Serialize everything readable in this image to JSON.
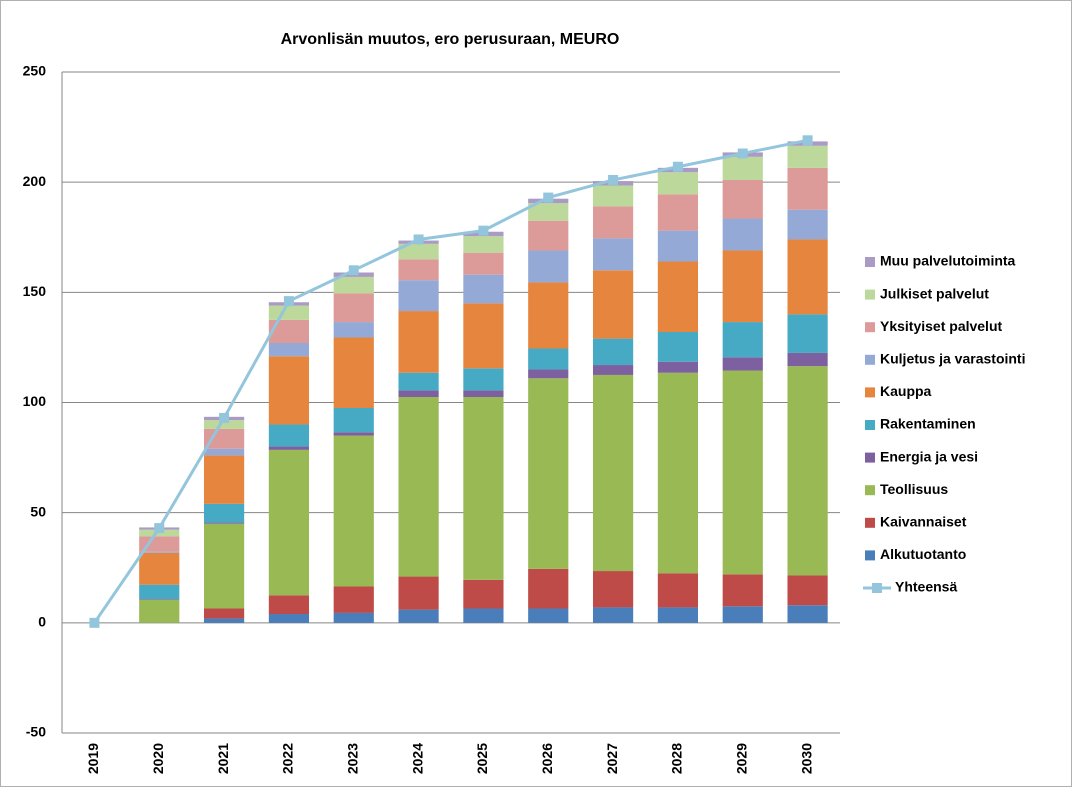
{
  "chart_data": {
    "type": "bar",
    "stacked": true,
    "title": "Arvonlisän muutos, ero perusuraan, MEURO",
    "categories": [
      "2019",
      "2020",
      "2021",
      "2022",
      "2023",
      "2024",
      "2025",
      "2026",
      "2027",
      "2028",
      "2029",
      "2030"
    ],
    "ylim": [
      -50,
      250
    ],
    "yticks": [
      -50,
      0,
      50,
      100,
      150,
      200,
      250
    ],
    "grid": true,
    "legend": "right",
    "series": [
      {
        "name": "Alkutuotanto",
        "color": "#4a7ebb",
        "values": [
          0,
          0,
          2,
          4,
          4.5,
          6,
          6.5,
          6.5,
          7,
          7,
          7.5,
          8
        ]
      },
      {
        "name": "Kaivannaiset",
        "color": "#be4b48",
        "values": [
          0,
          0,
          4.5,
          8.5,
          12,
          15,
          13,
          18,
          16.5,
          15.5,
          14.5,
          13.5
        ]
      },
      {
        "name": "Teollisuus",
        "color": "#98b954",
        "values": [
          0,
          10.5,
          38.5,
          66,
          68.5,
          81.5,
          83,
          86.5,
          89,
          91,
          92.5,
          95
        ]
      },
      {
        "name": "Energia ja vesi",
        "color": "#7d60a0",
        "values": [
          0,
          0.3,
          0.5,
          1.5,
          1.5,
          3,
          3,
          4,
          4.5,
          5,
          6,
          6
        ]
      },
      {
        "name": "Rakentaminen",
        "color": "#46aac4",
        "values": [
          0,
          6.5,
          8.5,
          10,
          11,
          8,
          10,
          9.5,
          12,
          13.5,
          16,
          17.5
        ]
      },
      {
        "name": "Kauppa",
        "color": "#e5853e",
        "values": [
          0,
          14.5,
          22,
          31,
          32,
          28,
          29.5,
          30,
          31,
          32,
          32.5,
          34
        ]
      },
      {
        "name": "Kuljetus ja varastointi",
        "color": "#94a9d6",
        "values": [
          0,
          0.5,
          3,
          6,
          7,
          14,
          13,
          14.5,
          14.5,
          14,
          14.5,
          13.5
        ]
      },
      {
        "name": "Yksityiset palvelut",
        "color": "#dc9a99",
        "values": [
          0,
          7,
          9,
          10.5,
          13,
          9.5,
          10,
          13.5,
          14.5,
          16.5,
          17.5,
          19
        ]
      },
      {
        "name": "Julkiset palvelut",
        "color": "#bcd89a",
        "values": [
          0,
          3,
          4,
          6.5,
          7.5,
          7,
          7.5,
          8,
          9.5,
          10,
          10.5,
          10
        ]
      },
      {
        "name": "Muu palvelutoiminta",
        "color": "#a99bc4",
        "values": [
          0,
          1,
          1.5,
          1.5,
          2,
          1.5,
          2,
          2,
          2,
          2,
          2,
          2
        ]
      },
      {
        "name": "Yhteensä",
        "type": "line",
        "color": "#93c5dc",
        "values": [
          0,
          43,
          93,
          146,
          160,
          174,
          178,
          193,
          201,
          207,
          213,
          219
        ]
      }
    ]
  }
}
